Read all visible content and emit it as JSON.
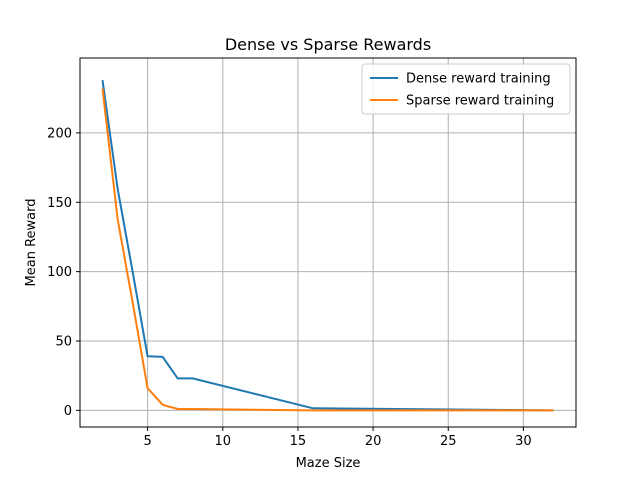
{
  "chart_data": {
    "type": "line",
    "title": "Dense vs Sparse Rewards",
    "xlabel": "Maze Size",
    "ylabel": "Mean Reward",
    "xlim": [
      0.5,
      33.5
    ],
    "ylim": [
      -12,
      254
    ],
    "xticks": [
      5,
      10,
      15,
      20,
      25,
      30
    ],
    "yticks": [
      0,
      50,
      100,
      150,
      200
    ],
    "grid": true,
    "legend_position": "upper-right",
    "series": [
      {
        "name": "Dense reward training",
        "color": "#1f77b4",
        "x": [
          2,
          3,
          4,
          5,
          6,
          7,
          8,
          16,
          32
        ],
        "y": [
          238,
          160,
          100,
          39,
          38.5,
          23,
          23,
          1.5,
          0
        ]
      },
      {
        "name": "Sparse reward training",
        "color": "#ff7f0e",
        "x": [
          2,
          3,
          4,
          5,
          6,
          7,
          8,
          16,
          32
        ],
        "y": [
          232,
          138,
          78,
          16,
          4,
          1,
          1,
          0,
          0
        ]
      }
    ]
  }
}
